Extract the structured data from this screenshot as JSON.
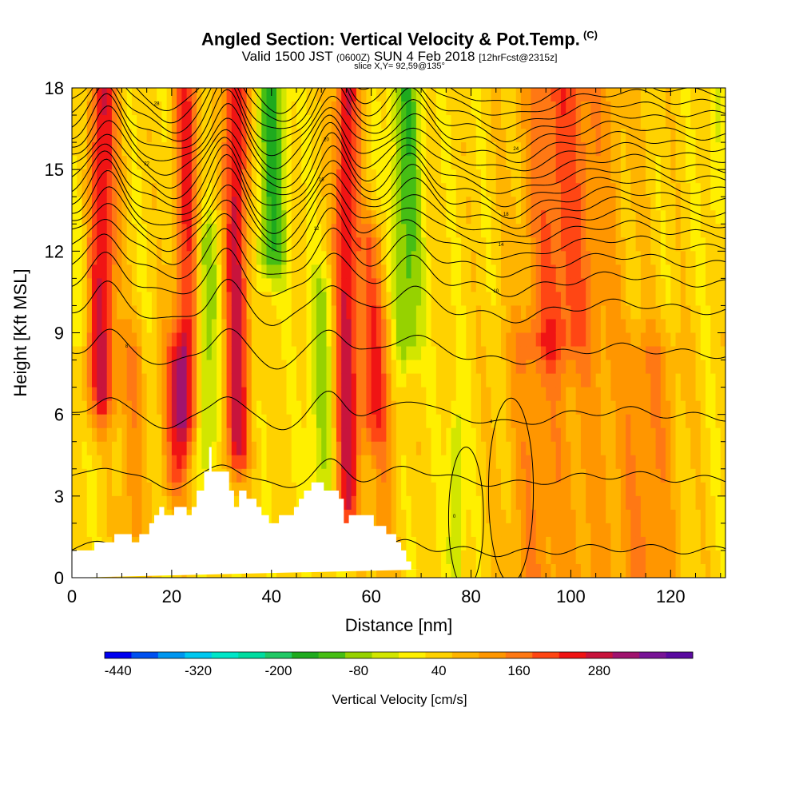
{
  "header": {
    "title": "Angled Section: Vertical Velocity & Pot.Temp.",
    "title_flag": "(C)",
    "valid_prefix": "Valid 1500 JST",
    "valid_utc": "(0600Z)",
    "valid_date": "SUN 4 Feb 2018",
    "forecast": "[12hrFcst@2315z]",
    "slice": "slice X,Y= 92,59@135°"
  },
  "chart_data": {
    "type": "heatmap",
    "xlabel": "Distance [nm]",
    "ylabel": "Height [Kft MSL]",
    "xlim": [
      0,
      131
    ],
    "ylim": [
      0,
      18
    ],
    "x_ticks": [
      0,
      20,
      40,
      60,
      80,
      100,
      120
    ],
    "y_ticks": [
      0,
      3,
      6,
      9,
      12,
      15,
      18
    ],
    "colorbar": {
      "label": "Vertical Velocity [cm/s]",
      "min": -460,
      "step": 40,
      "tick_labels": [
        "-440",
        "-320",
        "-200",
        "-80",
        "40",
        "160",
        "280"
      ],
      "colors": [
        "#0000f0",
        "#0050f0",
        "#0096f0",
        "#00c8f0",
        "#00e6c8",
        "#00dca0",
        "#20c864",
        "#1eaa1e",
        "#46be14",
        "#96d200",
        "#d2e600",
        "#fff000",
        "#ffd200",
        "#ffb400",
        "#ff9600",
        "#ff7814",
        "#ff4614",
        "#f01414",
        "#c8143c",
        "#a0146e",
        "#781496",
        "#5a0aa0"
      ]
    },
    "velocity_bands": [
      {
        "x": 6,
        "w": 3,
        "v": 230,
        "top": 18,
        "bot": 7
      },
      {
        "x": 23,
        "w": 2.5,
        "v": 190,
        "top": 18,
        "bot": 6
      },
      {
        "x": 21,
        "w": 3,
        "v": 150,
        "top": 8,
        "bot": 4
      },
      {
        "x": 33,
        "w": 2.5,
        "v": 240,
        "top": 18,
        "bot": 5
      },
      {
        "x": 40,
        "w": 3,
        "v": -170,
        "top": 18,
        "bot": 12
      },
      {
        "x": 27,
        "w": 2.5,
        "v": -120,
        "top": 12,
        "bot": 5
      },
      {
        "x": 55,
        "w": 2.5,
        "v": 230,
        "top": 18,
        "bot": 3
      },
      {
        "x": 50,
        "w": 2.5,
        "v": -110,
        "top": 10,
        "bot": 3
      },
      {
        "x": 67,
        "w": 3,
        "v": -160,
        "top": 18,
        "bot": 9
      },
      {
        "x": 77,
        "w": 1.5,
        "v": -110,
        "top": 5,
        "bot": 1
      },
      {
        "x": 97,
        "w": 7,
        "v": 110,
        "top": 18,
        "bot": 9
      },
      {
        "x": 103,
        "w": 10,
        "v": 70,
        "top": 18,
        "bot": 0
      },
      {
        "x": 129,
        "w": 2,
        "v": -50,
        "top": 18,
        "bot": 14
      },
      {
        "x": 12,
        "w": 2.5,
        "v": 90,
        "top": 8,
        "bot": 2
      },
      {
        "x": 62,
        "w": 3,
        "v": 80,
        "top": 9,
        "bot": 1
      },
      {
        "x": 92,
        "w": 6,
        "v": 70,
        "top": 8,
        "bot": 0
      },
      {
        "x": 116,
        "w": 6,
        "v": 90,
        "top": 8,
        "bot": 0
      },
      {
        "x": 60,
        "w": 3,
        "v": 120,
        "top": 12,
        "bot": 6
      },
      {
        "x": 2,
        "w": 2,
        "v": -60,
        "top": 18,
        "bot": 10
      }
    ],
    "terrain": {
      "x": [
        0,
        4.5,
        4.5,
        8.5,
        8.5,
        12,
        12,
        13.5,
        13.5,
        15.5,
        15.5,
        16.5,
        16.5,
        17.5,
        17.5,
        18.5,
        18.5,
        20.5,
        20.5,
        23,
        23,
        24,
        24,
        25,
        25,
        26.5,
        26.5,
        27.5,
        27.5,
        28,
        28,
        31.5,
        31.5,
        32.5,
        32.5,
        33.5,
        33.5,
        35,
        35,
        37,
        37,
        38,
        38,
        39.5,
        39.5,
        41.5,
        41.5,
        44.5,
        44.5,
        45.5,
        45.5,
        46.5,
        46.5,
        48,
        48,
        50.5,
        50.5,
        53.5,
        53.5,
        54.5,
        54.5,
        55.5,
        55.5,
        57.5,
        57.5,
        60.5,
        60.5,
        63,
        63,
        65,
        65,
        66,
        66,
        67,
        67,
        68,
        68,
        70,
        70,
        131
      ],
      "kft": [
        1.0,
        1.0,
        1.3,
        1.3,
        1.6,
        1.6,
        1.3,
        1.3,
        1.6,
        1.6,
        2.0,
        2.0,
        2.3,
        2.3,
        2.6,
        2.6,
        2.3,
        2.3,
        2.6,
        2.6,
        2.3,
        2.3,
        2.6,
        2.6,
        3.2,
        3.2,
        3.9,
        3.9,
        4.8,
        4.8,
        3.9,
        3.9,
        3.2,
        3.2,
        2.6,
        2.6,
        3.2,
        3.2,
        2.9,
        2.9,
        2.6,
        2.6,
        2.3,
        2.3,
        2.0,
        2.0,
        2.3,
        2.3,
        2.6,
        2.6,
        2.9,
        2.9,
        3.2,
        3.2,
        3.5,
        3.5,
        3.2,
        3.2,
        2.9,
        2.9,
        2.0,
        2.0,
        2.3,
        2.3,
        2.3,
        2.3,
        1.9,
        1.9,
        1.6,
        1.6,
        1.3,
        1.3,
        1.0,
        1.0,
        0.6,
        0.6,
        0.3,
        0.3,
        0.3
      ]
    },
    "isentropes": [
      {
        "base": 1.0,
        "label": "",
        "a": 0.2
      },
      {
        "base": 3.6,
        "label": "",
        "a": 0.35
      },
      {
        "base": 5.9,
        "label": "4",
        "a": 0.5
      },
      {
        "base": 8.2,
        "label": "8",
        "a": 0.55
      },
      {
        "base": 9.8,
        "label": "",
        "a": 0.6
      },
      {
        "base": 10.8,
        "label": "10",
        "a": 0.65
      },
      {
        "base": 11.5,
        "label": "",
        "a": 0.7
      },
      {
        "base": 12.1,
        "label": "12",
        "a": 0.75
      },
      {
        "base": 12.6,
        "label": "14",
        "a": 0.8
      },
      {
        "base": 13.0,
        "label": "",
        "a": 0.85
      },
      {
        "base": 13.4,
        "label": "16",
        "a": 0.9
      },
      {
        "base": 13.8,
        "label": "18",
        "a": 0.9
      },
      {
        "base": 14.2,
        "label": "",
        "a": 0.9
      },
      {
        "base": 14.6,
        "label": "20",
        "a": 0.9
      },
      {
        "base": 15.0,
        "label": "",
        "a": 0.9
      },
      {
        "base": 15.4,
        "label": "22",
        "a": 0.9
      },
      {
        "base": 15.8,
        "label": "",
        "a": 0.9
      },
      {
        "base": 16.2,
        "label": "24",
        "a": 0.9
      },
      {
        "base": 16.6,
        "label": "",
        "a": 0.9
      },
      {
        "base": 17.0,
        "label": "26",
        "a": 0.9
      },
      {
        "base": 17.4,
        "label": "",
        "a": 0.9
      },
      {
        "base": 17.8,
        "label": "28",
        "a": 0.9
      }
    ],
    "contour_shape": [
      {
        "x": 7,
        "amp": 1.6,
        "w": 4
      },
      {
        "x": 31,
        "amp": 1.8,
        "w": 4
      },
      {
        "x": 52,
        "amp": 1.8,
        "w": 4
      },
      {
        "x": 68,
        "amp": 1.4,
        "w": 5
      },
      {
        "x": 20,
        "amp": -0.6,
        "w": 5
      },
      {
        "x": 41,
        "amp": -0.7,
        "w": 5
      },
      {
        "x": 88,
        "amp": -0.5,
        "w": 6
      },
      {
        "x": 110,
        "amp": 0.5,
        "w": 10
      }
    ],
    "closed_contours": [
      {
        "cx": 79,
        "cy": 2.2,
        "rx": 3.5,
        "ry": 2.6,
        "label": "0"
      },
      {
        "cx": 88,
        "cy": 3.2,
        "rx": 4.5,
        "ry": 3.4,
        "label": ""
      }
    ]
  }
}
